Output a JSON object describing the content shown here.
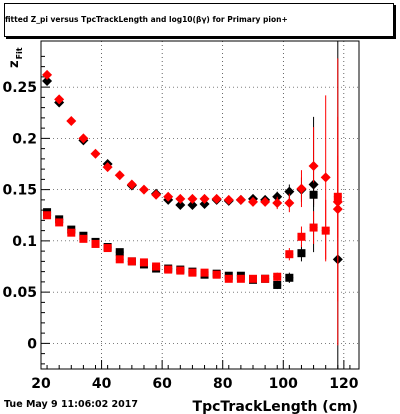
{
  "title": "fitted Z_pi versus TpcTrackLength and log10(βγ) for Primary pion+",
  "footer_timestamp": "Tue May  9 11:06:02 2017",
  "chart_data": {
    "type": "scatter",
    "title": "fitted Z_pi versus TpcTrackLength and log10(βγ) for Primary pion+",
    "xlabel": "TpcTrackLength (cm)",
    "ylabel": "z_Fit",
    "xlim": [
      20,
      125
    ],
    "ylim": [
      -0.025,
      0.295
    ],
    "xticks": [
      20,
      40,
      60,
      80,
      100,
      120
    ],
    "xtick_labels": [
      "20",
      "40",
      "60",
      "80",
      "100",
      "120"
    ],
    "yticks": [
      0,
      0.05,
      0.1,
      0.15,
      0.2,
      0.25
    ],
    "ytick_labels": [
      "0",
      "0.05",
      "0.1",
      "0.15",
      "0.2",
      "0.25"
    ],
    "grid": true,
    "series": [
      {
        "marker": "diamond",
        "color": "#000000",
        "points": [
          {
            "x": 22,
            "y": 0.256,
            "err": 0.003
          },
          {
            "x": 26,
            "y": 0.235,
            "err": 0.002
          },
          {
            "x": 34,
            "y": 0.198,
            "err": 0.002
          },
          {
            "x": 42,
            "y": 0.175,
            "err": 0.002
          },
          {
            "x": 50,
            "y": 0.154,
            "err": 0.002
          },
          {
            "x": 58,
            "y": 0.146,
            "err": 0.002
          },
          {
            "x": 62,
            "y": 0.14,
            "err": 0.002
          },
          {
            "x": 66,
            "y": 0.135,
            "err": 0.002
          },
          {
            "x": 70,
            "y": 0.135,
            "err": 0.002
          },
          {
            "x": 74,
            "y": 0.136,
            "err": 0.002
          },
          {
            "x": 78,
            "y": 0.14,
            "err": 0.002
          },
          {
            "x": 82,
            "y": 0.139,
            "err": 0.002
          },
          {
            "x": 86,
            "y": 0.14,
            "err": 0.002
          },
          {
            "x": 90,
            "y": 0.141,
            "err": 0.003
          },
          {
            "x": 94,
            "y": 0.14,
            "err": 0.003
          },
          {
            "x": 98,
            "y": 0.143,
            "err": 0.005
          },
          {
            "x": 102,
            "y": 0.148,
            "err": 0.007
          },
          {
            "x": 106,
            "y": 0.15,
            "err": 0.012
          },
          {
            "x": 110,
            "y": 0.155,
            "err": 0.066
          },
          {
            "x": 118,
            "y": 0.082,
            "err": 0.25
          }
        ]
      },
      {
        "marker": "diamond",
        "color": "#ff0000",
        "points": [
          {
            "x": 22,
            "y": 0.262,
            "err": 0.003
          },
          {
            "x": 26,
            "y": 0.238,
            "err": 0.002
          },
          {
            "x": 30,
            "y": 0.217,
            "err": 0.002
          },
          {
            "x": 34,
            "y": 0.2,
            "err": 0.002
          },
          {
            "x": 38,
            "y": 0.185,
            "err": 0.002
          },
          {
            "x": 42,
            "y": 0.172,
            "err": 0.002
          },
          {
            "x": 46,
            "y": 0.164,
            "err": 0.002
          },
          {
            "x": 50,
            "y": 0.155,
            "err": 0.002
          },
          {
            "x": 54,
            "y": 0.15,
            "err": 0.002
          },
          {
            "x": 58,
            "y": 0.145,
            "err": 0.002
          },
          {
            "x": 62,
            "y": 0.143,
            "err": 0.002
          },
          {
            "x": 66,
            "y": 0.141,
            "err": 0.002
          },
          {
            "x": 70,
            "y": 0.141,
            "err": 0.002
          },
          {
            "x": 74,
            "y": 0.141,
            "err": 0.002
          },
          {
            "x": 78,
            "y": 0.141,
            "err": 0.002
          },
          {
            "x": 82,
            "y": 0.14,
            "err": 0.002
          },
          {
            "x": 86,
            "y": 0.14,
            "err": 0.003
          },
          {
            "x": 90,
            "y": 0.138,
            "err": 0.003
          },
          {
            "x": 94,
            "y": 0.138,
            "err": 0.004
          },
          {
            "x": 98,
            "y": 0.137,
            "err": 0.006
          },
          {
            "x": 102,
            "y": 0.137,
            "err": 0.009
          },
          {
            "x": 106,
            "y": 0.151,
            "err": 0.018
          },
          {
            "x": 110,
            "y": 0.173,
            "err": 0.038
          },
          {
            "x": 114,
            "y": 0.162,
            "err": 0.08
          },
          {
            "x": 118,
            "y": 0.138,
            "err": 0.14
          },
          {
            "x": 118,
            "y": 0.131,
            "err": 0.09
          }
        ]
      },
      {
        "marker": "square",
        "color": "#000000",
        "points": [
          {
            "x": 22,
            "y": 0.128,
            "err": 0.002
          },
          {
            "x": 26,
            "y": 0.121,
            "err": 0.002
          },
          {
            "x": 30,
            "y": 0.111,
            "err": 0.002
          },
          {
            "x": 34,
            "y": 0.105,
            "err": 0.002
          },
          {
            "x": 38,
            "y": 0.099,
            "err": 0.002
          },
          {
            "x": 42,
            "y": 0.094,
            "err": 0.002
          },
          {
            "x": 46,
            "y": 0.089,
            "err": 0.002
          },
          {
            "x": 50,
            "y": 0.08,
            "err": 0.002
          },
          {
            "x": 54,
            "y": 0.077,
            "err": 0.002
          },
          {
            "x": 58,
            "y": 0.073,
            "err": 0.002
          },
          {
            "x": 62,
            "y": 0.073,
            "err": 0.002
          },
          {
            "x": 66,
            "y": 0.072,
            "err": 0.002
          },
          {
            "x": 70,
            "y": 0.07,
            "err": 0.002
          },
          {
            "x": 74,
            "y": 0.067,
            "err": 0.002
          },
          {
            "x": 78,
            "y": 0.068,
            "err": 0.002
          },
          {
            "x": 82,
            "y": 0.066,
            "err": 0.002
          },
          {
            "x": 86,
            "y": 0.066,
            "err": 0.002
          },
          {
            "x": 90,
            "y": 0.062,
            "err": 0.003
          },
          {
            "x": 94,
            "y": 0.063,
            "err": 0.003
          },
          {
            "x": 98,
            "y": 0.057,
            "err": 0.004
          },
          {
            "x": 102,
            "y": 0.064,
            "err": 0.005
          },
          {
            "x": 106,
            "y": 0.088,
            "err": 0.008
          },
          {
            "x": 110,
            "y": 0.145,
            "err": 0.012
          }
        ]
      },
      {
        "marker": "square",
        "color": "#ff0000",
        "points": [
          {
            "x": 22,
            "y": 0.125,
            "err": 0.002
          },
          {
            "x": 26,
            "y": 0.118,
            "err": 0.002
          },
          {
            "x": 30,
            "y": 0.108,
            "err": 0.002
          },
          {
            "x": 34,
            "y": 0.102,
            "err": 0.002
          },
          {
            "x": 38,
            "y": 0.097,
            "err": 0.002
          },
          {
            "x": 42,
            "y": 0.093,
            "err": 0.002
          },
          {
            "x": 46,
            "y": 0.082,
            "err": 0.002
          },
          {
            "x": 50,
            "y": 0.08,
            "err": 0.002
          },
          {
            "x": 54,
            "y": 0.079,
            "err": 0.002
          },
          {
            "x": 58,
            "y": 0.075,
            "err": 0.002
          },
          {
            "x": 62,
            "y": 0.072,
            "err": 0.002
          },
          {
            "x": 66,
            "y": 0.071,
            "err": 0.002
          },
          {
            "x": 70,
            "y": 0.069,
            "err": 0.002
          },
          {
            "x": 74,
            "y": 0.069,
            "err": 0.002
          },
          {
            "x": 78,
            "y": 0.067,
            "err": 0.002
          },
          {
            "x": 82,
            "y": 0.063,
            "err": 0.002
          },
          {
            "x": 86,
            "y": 0.063,
            "err": 0.002
          },
          {
            "x": 90,
            "y": 0.063,
            "err": 0.003
          },
          {
            "x": 94,
            "y": 0.063,
            "err": 0.003
          },
          {
            "x": 98,
            "y": 0.065,
            "err": 0.004
          },
          {
            "x": 102,
            "y": 0.087,
            "err": 0.006
          },
          {
            "x": 106,
            "y": 0.104,
            "err": 0.01
          },
          {
            "x": 110,
            "y": 0.113,
            "err": 0.016
          },
          {
            "x": 114,
            "y": 0.11,
            "err": 0.03
          },
          {
            "x": 118,
            "y": 0.143,
            "err": 0.04
          }
        ]
      }
    ]
  }
}
